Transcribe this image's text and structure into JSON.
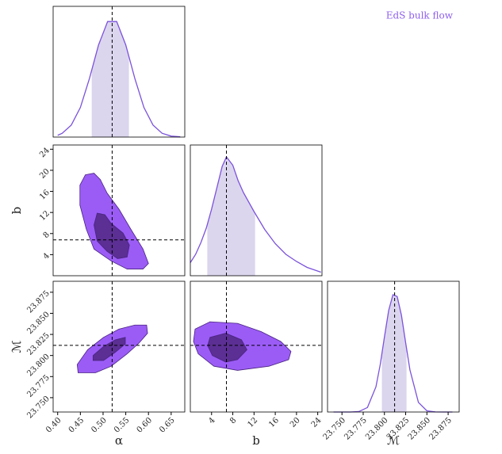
{
  "chart_data": {
    "type": "corner",
    "title": "EdS bulk flow",
    "title_color": "#8e5ff0",
    "outer_color": "#9b5cf6",
    "inner_color": "#5b2f93",
    "edge_color": "#4a2480",
    "line_color": "#7a52dc",
    "band_color": "#dcd5ee",
    "density_lim": [
      0,
      1.1
    ],
    "parameters": [
      {
        "label": "α",
        "lim": [
          0.39,
          0.68
        ],
        "ticks": [
          {
            "value": 0.4,
            "label": "0.40"
          },
          0.45,
          {
            "value": 0.5,
            "label": "0.50"
          },
          0.55,
          {
            "value": 0.6,
            "label": "0.60"
          },
          0.65
        ],
        "truth": 0.52,
        "marginal": {
          "x": [
            0.4,
            0.41,
            0.43,
            0.45,
            0.47,
            0.49,
            0.51,
            0.53,
            0.55,
            0.57,
            0.59,
            0.61,
            0.63,
            0.65,
            0.67
          ],
          "density": [
            0.015,
            0.032,
            0.101,
            0.249,
            0.493,
            0.775,
            0.972,
            0.972,
            0.775,
            0.493,
            0.249,
            0.101,
            0.032,
            0.008,
            0.002
          ],
          "interval": [
            0.475,
            0.557
          ]
        }
      },
      {
        "label": "b",
        "lim": [
          0,
          24.8
        ],
        "ticks": [
          4,
          8,
          12,
          16,
          20,
          24
        ],
        "truth": 6.8,
        "marginal": {
          "x": [
            0,
            1,
            2,
            3,
            4,
            5,
            6,
            6.8,
            8,
            9,
            10,
            12,
            14,
            16,
            18,
            20,
            22,
            24.6
          ],
          "density": [
            0.11,
            0.18,
            0.28,
            0.4,
            0.56,
            0.74,
            0.92,
            1.0,
            0.93,
            0.8,
            0.7,
            0.54,
            0.39,
            0.27,
            0.18,
            0.12,
            0.07,
            0.03
          ],
          "interval": [
            3.2,
            12.2
          ]
        }
      },
      {
        "label": "ℳ",
        "lim": [
          23.733,
          23.888
        ],
        "ticks": [
          {
            "value": 23.75,
            "label": "23.750"
          },
          23.775,
          {
            "value": 23.8,
            "label": "23.800"
          },
          23.825,
          {
            "value": 23.85,
            "label": "23.850"
          },
          23.875
        ],
        "truth": 23.812,
        "marginal": {
          "x": [
            23.74,
            23.75,
            23.76,
            23.77,
            23.78,
            23.79,
            23.795,
            23.8,
            23.805,
            23.81,
            23.815,
            23.82,
            23.825,
            23.83,
            23.84,
            23.85,
            23.86,
            23.87,
            23.88
          ],
          "density": [
            0,
            0,
            0,
            0.004,
            0.038,
            0.212,
            0.397,
            0.631,
            0.855,
            0.987,
            0.972,
            0.815,
            0.582,
            0.355,
            0.081,
            0.01,
            0.001,
            0,
            0
          ],
          "interval": [
            23.797,
            23.826
          ]
        }
      }
    ],
    "pairs": [
      {
        "contours": [
          {
            "x": [
              0.461,
              0.48,
              0.494,
              0.509,
              0.535,
              0.561,
              0.588,
              0.6,
              0.588,
              0.553,
              0.518,
              0.48,
              0.463,
              0.449,
              0.449
            ],
            "y": [
              19.15,
              19.45,
              18.24,
              15.67,
              12.64,
              8.85,
              5.06,
              2.33,
              1.27,
              1.27,
              2.79,
              5.06,
              8.85,
              13.39,
              17.18
            ]
          },
          {
            "x": [
              0.487,
              0.504,
              0.518,
              0.544,
              0.558,
              0.553,
              0.532,
              0.509,
              0.487,
              0.48
            ],
            "y": [
              11.88,
              11.58,
              9.91,
              8.09,
              5.82,
              3.55,
              3.24,
              4.61,
              6.58,
              9.61
            ]
          }
        ]
      },
      {
        "contours": [
          {
            "x": [
              0.443,
              0.466,
              0.501,
              0.535,
              0.57,
              0.596,
              0.598,
              0.579,
              0.553,
              0.518,
              0.483,
              0.445
            ],
            "y": [
              23.7893,
              23.8068,
              23.8215,
              23.8313,
              23.8361,
              23.8361,
              23.8264,
              23.8146,
              23.802,
              23.7873,
              23.7795,
              23.7795
            ]
          },
          {
            "x": [
              0.478,
              0.501,
              0.527,
              0.549,
              0.549,
              0.527,
              0.501,
              0.478
            ],
            "y": [
              23.8,
              23.8107,
              23.8186,
              23.8215,
              23.8137,
              23.8039,
              23.7941,
              23.7941
            ]
          }
        ]
      },
      {
        "contours": [
          {
            "x": [
              0.89,
              3.7,
              8.89,
              13.33,
              17.04,
              18.96,
              18.52,
              14.81,
              8.89,
              4.44,
              1.48,
              0.59
            ],
            "y": [
              23.8313,
              23.84,
              23.8381,
              23.8283,
              23.8166,
              23.8049,
              23.7951,
              23.7873,
              23.7824,
              23.7873,
              23.802,
              23.8166
            ]
          },
          {
            "x": [
              3.7,
              6.67,
              9.63,
              10.67,
              8.89,
              6.67,
              4.15,
              3.26
            ],
            "y": [
              23.8215,
              23.8264,
              23.8186,
              23.8068,
              23.7951,
              23.7922,
              23.8,
              23.8117
            ]
          }
        ]
      }
    ]
  }
}
